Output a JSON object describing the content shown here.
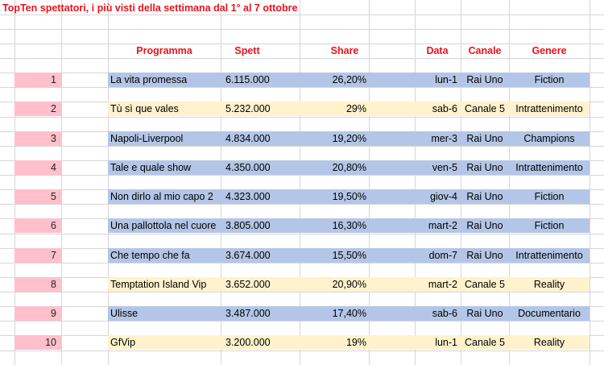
{
  "title": "TopTen spettatori, i più visti della settimana dal 1° al 7 ottobre",
  "headers": {
    "programma": "Programma",
    "spett": "Spett",
    "share": "Share",
    "data": "Data",
    "canale": "Canale",
    "genere": "Genere"
  },
  "rows": [
    {
      "rank": "1",
      "programma": "La vita promessa",
      "spett": "6.115.000",
      "share": "26,20%",
      "data": "lun-1",
      "canale": "Rai Uno",
      "genere": "Fiction",
      "color": "#b4c6e7"
    },
    {
      "rank": "2",
      "programma": "Tù sì que vales",
      "spett": "5.232.000",
      "share": "29%",
      "data": "sab-6",
      "canale": "Canale 5",
      "genere": "Intrattenimento",
      "color": "#fff2cc"
    },
    {
      "rank": "3",
      "programma": "Napoli-Liverpool",
      "spett": "4.834.000",
      "share": "19,20%",
      "data": "mer-3",
      "canale": "Rai Uno",
      "genere": "Champions",
      "color": "#b4c6e7"
    },
    {
      "rank": "4",
      "programma": "Tale e quale show",
      "spett": "4.350.000",
      "share": "20,80%",
      "data": "ven-5",
      "canale": "Rai Uno",
      "genere": "Intrattenimento",
      "color": "#b4c6e7"
    },
    {
      "rank": "5",
      "programma": "Non dirlo al mio capo 2",
      "spett": "4.323.000",
      "share": "19,50%",
      "data": "giov-4",
      "canale": "Rai Uno",
      "genere": "Fiction",
      "color": "#b4c6e7"
    },
    {
      "rank": "6",
      "programma": "Una pallottola nel cuore",
      "spett": "3.805.000",
      "share": "16,30%",
      "data": "mart-2",
      "canale": "Rai Uno",
      "genere": "Fiction",
      "color": "#b4c6e7"
    },
    {
      "rank": "7",
      "programma": "Che tempo che fa",
      "spett": "3.674.000",
      "share": "15,50%",
      "data": "dom-7",
      "canale": "Rai Uno",
      "genere": "Intrattenimento",
      "color": "#b4c6e7"
    },
    {
      "rank": "8",
      "programma": "Temptation Island Vip",
      "spett": "3.652.000",
      "share": "20,90%",
      "data": "mart-2",
      "canale": "Canale 5",
      "genere": "Reality",
      "color": "#fff2cc"
    },
    {
      "rank": "9",
      "programma": "Ulisse",
      "spett": "3.487.000",
      "share": "17,40%",
      "data": "sab-6",
      "canale": "Rai Uno",
      "genere": "Documentario",
      "color": "#b4c6e7"
    },
    {
      "rank": "10",
      "programma": "GfVip",
      "spett": "3.200.000",
      "share": "19%",
      "data": "lun-1",
      "canale": "Canale 5",
      "genere": "Reality",
      "color": "#fff2cc"
    }
  ]
}
